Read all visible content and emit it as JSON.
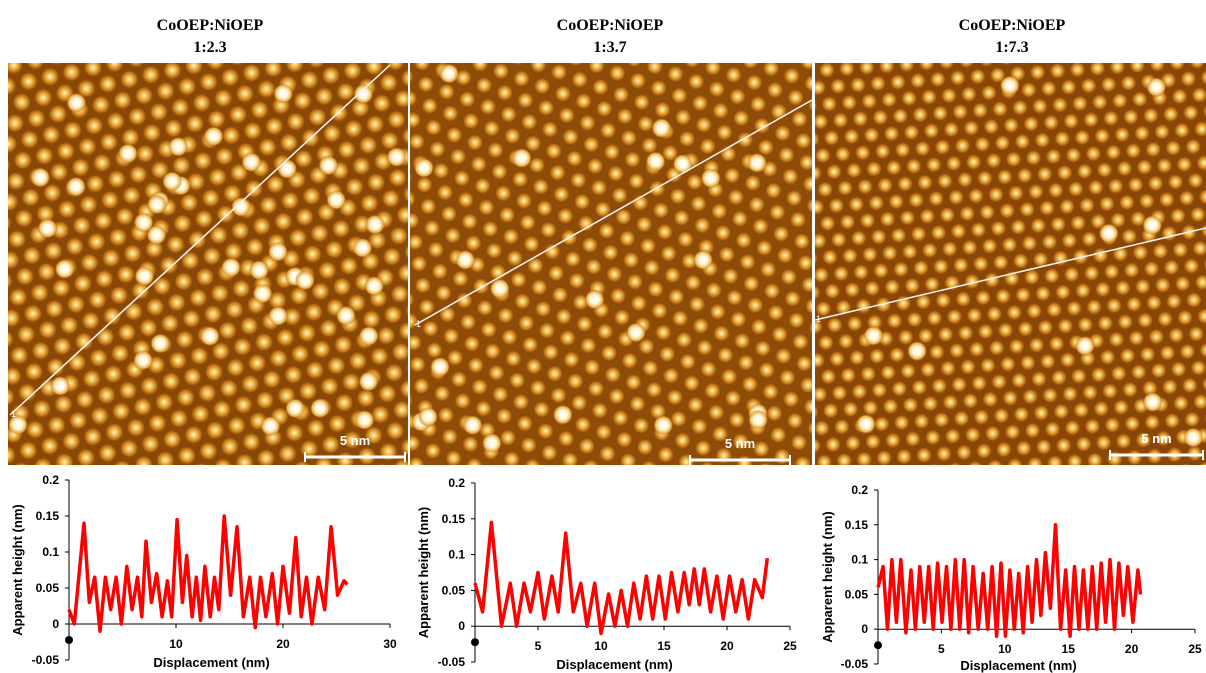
{
  "panels": [
    {
      "title": "CoOEP:NiOEP",
      "subtitle": "1:2.3",
      "scale_bar": "5 nm",
      "line_marker": "1"
    },
    {
      "title": "CoOEP:NiOEP",
      "subtitle": "1:3.7",
      "scale_bar": "5 nm",
      "line_marker": "1"
    },
    {
      "title": "CoOEP:NiOEP",
      "subtitle": "1:7.3",
      "scale_bar": "5 nm",
      "line_marker": "1"
    }
  ],
  "chart_data": [
    {
      "type": "line",
      "ylabel": "Apparent height (nm)",
      "xlabel": "Displacement (nm)",
      "color": "#ff0000",
      "xlim": [
        0,
        30
      ],
      "xticks": [
        10,
        20,
        30
      ],
      "ylim": [
        -0.05,
        0.2
      ],
      "yticks": [
        -0.05,
        0,
        0.05,
        0.1,
        0.15,
        0.2
      ],
      "x": [
        0,
        0.5,
        1.4,
        1.9,
        2.4,
        2.9,
        3.4,
        3.9,
        4.4,
        4.9,
        5.4,
        5.9,
        6.4,
        6.8,
        7.2,
        7.7,
        8.2,
        8.7,
        9.2,
        9.6,
        10.1,
        10.6,
        11.0,
        11.5,
        11.9,
        12.3,
        12.7,
        13.2,
        13.6,
        14.0,
        14.5,
        15.1,
        15.7,
        16.3,
        16.9,
        17.4,
        17.9,
        18.4,
        19.0,
        19.5,
        20.0,
        20.6,
        21.2,
        21.7,
        22.2,
        22.7,
        23.3,
        23.9,
        24.5,
        25.1,
        25.7,
        26.0
      ],
      "values": [
        0.02,
        0.0,
        0.14,
        0.03,
        0.065,
        -0.01,
        0.065,
        0.02,
        0.065,
        0.0,
        0.08,
        0.02,
        0.065,
        0.01,
        0.115,
        0.03,
        0.07,
        0.01,
        0.06,
        0.01,
        0.145,
        0.03,
        0.095,
        0.01,
        0.065,
        0.005,
        0.08,
        0.01,
        0.065,
        0.02,
        0.15,
        0.04,
        0.135,
        0.01,
        0.065,
        -0.005,
        0.065,
        0.01,
        0.07,
        0.0,
        0.08,
        0.015,
        0.12,
        0.01,
        0.065,
        0.0,
        0.065,
        0.02,
        0.135,
        0.04,
        0.06,
        0.055
      ]
    },
    {
      "type": "line",
      "ylabel": "Apparent height (nm)",
      "xlabel": "Displacement (nm)",
      "color": "#ff0000",
      "xlim": [
        0,
        25
      ],
      "xticks": [
        5,
        10,
        15,
        20,
        25
      ],
      "ylim": [
        -0.05,
        0.2
      ],
      "yticks": [
        -0.05,
        0,
        0.05,
        0.1,
        0.15,
        0.2
      ],
      "x": [
        0,
        0.6,
        1.3,
        2.1,
        2.8,
        3.3,
        3.9,
        4.4,
        5.0,
        5.5,
        6.1,
        6.6,
        7.2,
        7.8,
        8.4,
        8.9,
        9.5,
        10.0,
        10.6,
        11.1,
        11.6,
        12.1,
        12.6,
        13.1,
        13.6,
        14.1,
        14.6,
        15.1,
        15.6,
        16.1,
        16.6,
        17.0,
        17.4,
        17.8,
        18.2,
        18.7,
        19.2,
        19.7,
        20.2,
        20.7,
        21.2,
        21.7,
        22.2,
        22.8,
        23.2
      ],
      "values": [
        0.06,
        0.02,
        0.145,
        0.0,
        0.06,
        0.0,
        0.06,
        0.02,
        0.075,
        0.01,
        0.07,
        0.02,
        0.13,
        0.02,
        0.06,
        0.0,
        0.06,
        -0.01,
        0.045,
        0.0,
        0.05,
        0.0,
        0.06,
        0.01,
        0.07,
        0.01,
        0.07,
        0.01,
        0.075,
        0.02,
        0.075,
        0.03,
        0.08,
        0.03,
        0.08,
        0.02,
        0.07,
        0.01,
        0.07,
        0.02,
        0.065,
        0.01,
        0.065,
        0.04,
        0.095
      ]
    },
    {
      "type": "line",
      "ylabel": "Apparent height (nm)",
      "xlabel": "Displacement (nm)",
      "color": "#ff0000",
      "xlim": [
        0,
        25
      ],
      "xticks": [
        5,
        10,
        15,
        20,
        25
      ],
      "ylim": [
        -0.05,
        0.2
      ],
      "yticks": [
        -0.05,
        0,
        0.05,
        0.1,
        0.15,
        0.2
      ],
      "x": [
        0,
        0.4,
        0.75,
        1.1,
        1.45,
        1.8,
        2.2,
        2.6,
        2.95,
        3.3,
        3.65,
        4.0,
        4.35,
        4.7,
        5.05,
        5.4,
        5.75,
        6.1,
        6.45,
        6.8,
        7.15,
        7.5,
        7.9,
        8.3,
        8.65,
        9.0,
        9.35,
        9.7,
        10.05,
        10.4,
        10.75,
        11.1,
        11.45,
        11.8,
        12.15,
        12.5,
        12.85,
        13.2,
        13.6,
        14.0,
        14.4,
        14.8,
        15.15,
        15.5,
        15.85,
        16.2,
        16.55,
        16.9,
        17.25,
        17.6,
        17.95,
        18.3,
        18.65,
        19.0,
        19.35,
        19.7,
        20.1,
        20.5,
        20.7
      ],
      "values": [
        0.06,
        0.09,
        0.0,
        0.1,
        0.01,
        0.1,
        -0.005,
        0.085,
        0.0,
        0.09,
        0.01,
        0.09,
        0.0,
        0.095,
        0.01,
        0.09,
        0.0,
        0.1,
        0.0,
        0.1,
        -0.005,
        0.09,
        0.0,
        0.08,
        0.0,
        0.09,
        -0.01,
        0.095,
        -0.01,
        0.085,
        0.0,
        0.08,
        -0.005,
        0.09,
        0.01,
        0.1,
        0.02,
        0.11,
        0.03,
        0.15,
        0.0,
        0.085,
        -0.01,
        0.09,
        0.0,
        0.085,
        0.0,
        0.09,
        0.0,
        0.095,
        0.01,
        0.1,
        0.0,
        0.095,
        0.02,
        0.09,
        0.01,
        0.085,
        0.05
      ]
    }
  ]
}
